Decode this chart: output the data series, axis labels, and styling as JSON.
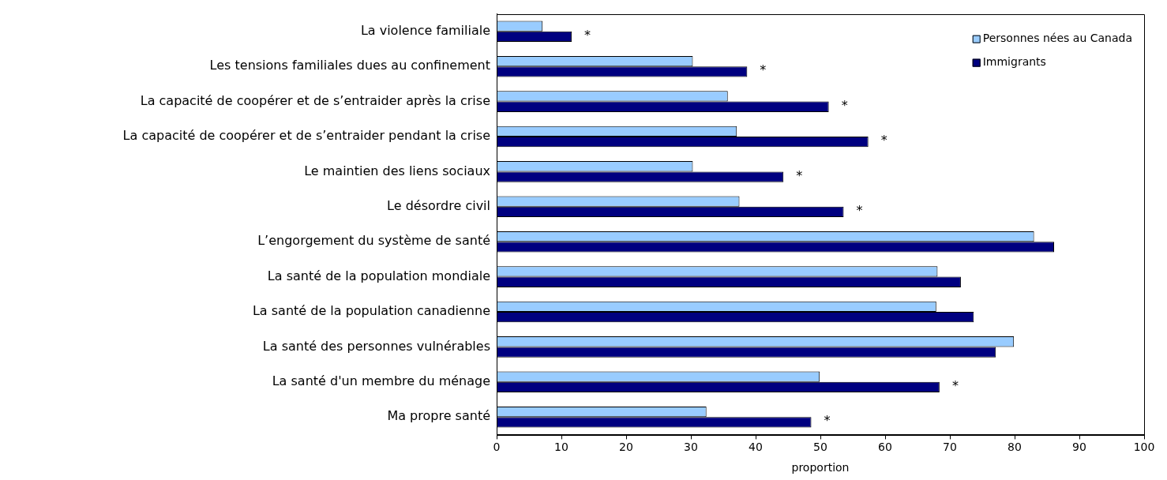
{
  "chart_data": {
    "type": "bar",
    "orientation": "horizontal",
    "xlabel": "proportion",
    "categories": [
      "La violence familiale",
      "Les tensions familiales dues au confinement",
      "La capacité de coopérer et de s’entraider après la crise",
      "La capacité de coopérer et de s’entraider pendant la crise",
      "Le maintien des liens sociaux",
      "Le désordre civil",
      "L’engorgement du système de santé",
      "La santé de la population mondiale",
      "La santé de la population canadienne",
      "La santé des personnes vulnérables",
      "La santé d'un membre du ménage",
      "Ma propre santé"
    ],
    "series": [
      {
        "name": "Personnes nées au Canada",
        "color": "#99ccff",
        "values": [
          7.1,
          30.3,
          35.7,
          37.1,
          30.3,
          37.5,
          83.0,
          68.1,
          67.9,
          79.9,
          49.9,
          32.4
        ]
      },
      {
        "name": "Immigrants",
        "color": "#000080",
        "values": [
          11.6,
          38.7,
          51.3,
          57.4,
          44.3,
          53.6,
          86.1,
          71.7,
          73.7,
          77.1,
          68.4,
          48.6
        ]
      }
    ],
    "xlim": [
      0,
      100
    ],
    "xticks": [
      0,
      10,
      20,
      30,
      40,
      50,
      60,
      70,
      80,
      90,
      100
    ],
    "grid": false,
    "legend": "top right",
    "annotations": [
      {
        "text": "*",
        "x": 11.6,
        "y": "La violence familiale"
      },
      {
        "text": "*",
        "x": 38.7,
        "y": "Les tensions familiales dues au confinement"
      },
      {
        "text": "*",
        "x": 51.3,
        "y": "La capacité de coopérer et de s’entraider après la crise"
      },
      {
        "text": "*",
        "x": 57.4,
        "y": "La capacité de coopérer et de s’entraider pendant la crise"
      },
      {
        "text": "*",
        "x": 44.3,
        "y": "Le maintien des liens sociaux"
      },
      {
        "text": "*",
        "x": 53.6,
        "y": "Le désordre civil"
      },
      {
        "text": "*",
        "x": 68.4,
        "y": "La santé d'un membre du ménage"
      },
      {
        "text": "*",
        "x": 48.6,
        "y": "Ma propre santé"
      }
    ]
  }
}
